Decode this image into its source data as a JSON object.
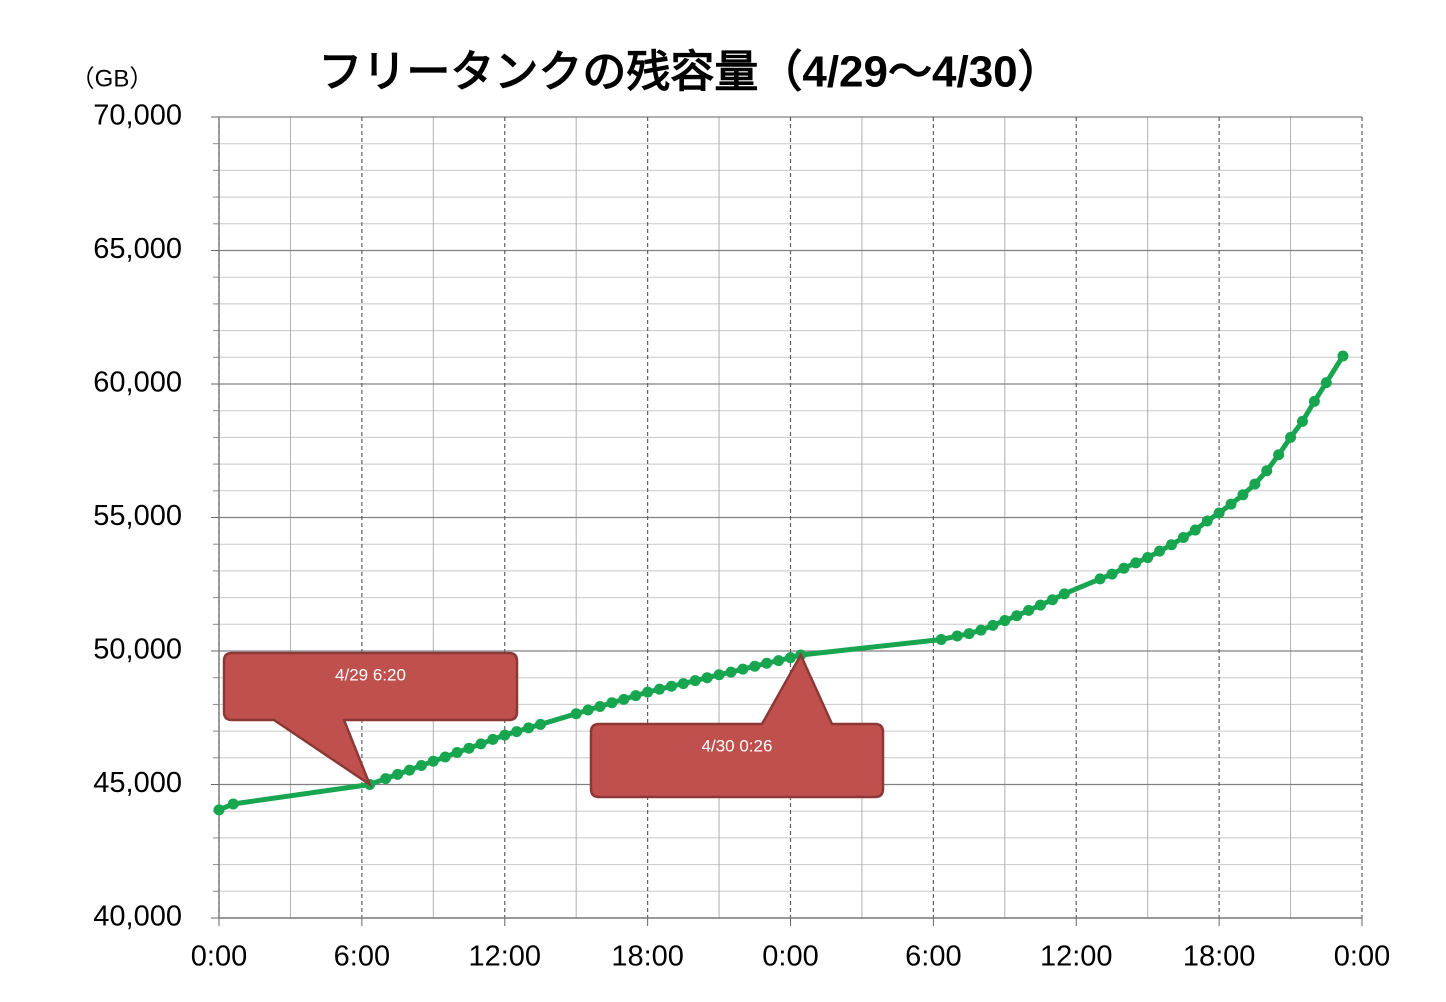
{
  "chart_data": {
    "type": "line",
    "title": "フリータンクの残容量（4/29～4/30）",
    "y_unit": "（GB）",
    "x": [
      0,
      0.6,
      6.33,
      7,
      7.5,
      8,
      8.5,
      9,
      9.5,
      10,
      10.5,
      11,
      11.5,
      12,
      12.5,
      13,
      13.5,
      15,
      15.5,
      16,
      16.5,
      17,
      17.5,
      18,
      18.5,
      19,
      19.5,
      20,
      20.5,
      21,
      21.5,
      22,
      22.5,
      23,
      23.5,
      24,
      24.43,
      30.33,
      31,
      31.5,
      32,
      32.5,
      33,
      33.5,
      34,
      34.5,
      35,
      35.5,
      37,
      37.5,
      38,
      38.5,
      39,
      39.5,
      40,
      40.5,
      41,
      41.5,
      42,
      42.5,
      43,
      43.5,
      44,
      44.5,
      45,
      45.5,
      46,
      46.5,
      47.2
    ],
    "series": [
      {
        "color": "#17a64f",
        "values": [
          44050,
          44270,
          45000,
          45220,
          45380,
          45540,
          45710,
          45870,
          46030,
          46200,
          46360,
          46520,
          46690,
          46850,
          46980,
          47120,
          47250,
          47650,
          47790,
          47920,
          48060,
          48190,
          48330,
          48460,
          48570,
          48680,
          48780,
          48890,
          49000,
          49110,
          49210,
          49320,
          49430,
          49540,
          49640,
          49750,
          49850,
          50430,
          50560,
          50650,
          50780,
          50960,
          51140,
          51320,
          51520,
          51720,
          51920,
          52140,
          52700,
          52880,
          53100,
          53300,
          53500,
          53740,
          53980,
          54250,
          54530,
          54870,
          55170,
          55500,
          55850,
          56250,
          56750,
          57350,
          58000,
          58600,
          59350,
          60050,
          61050
        ]
      }
    ],
    "xlim": [
      0,
      48
    ],
    "xticks": [
      {
        "value": 0,
        "label": "0:00"
      },
      {
        "value": 6,
        "label": "6:00"
      },
      {
        "value": 12,
        "label": "12:00"
      },
      {
        "value": 18,
        "label": "18:00"
      },
      {
        "value": 24,
        "label": "0:00"
      },
      {
        "value": 30,
        "label": "6:00"
      },
      {
        "value": 36,
        "label": "12:00"
      },
      {
        "value": 42,
        "label": "18:00"
      },
      {
        "value": 48,
        "label": "0:00"
      }
    ],
    "ylim": [
      40000,
      70000
    ],
    "yticks": [
      {
        "value": 40000,
        "label": "40,000"
      },
      {
        "value": 45000,
        "label": "45,000"
      },
      {
        "value": 50000,
        "label": "50,000"
      },
      {
        "value": 55000,
        "label": "55,000"
      },
      {
        "value": 60000,
        "label": "60,000"
      },
      {
        "value": 65000,
        "label": "65,000"
      },
      {
        "value": 70000,
        "label": "70,000"
      }
    ],
    "grid": true,
    "annotations": [
      {
        "text": "4/29 6:20",
        "x": 6.33,
        "y": 45000
      },
      {
        "text": "4/30 0:26",
        "x": 24.43,
        "y": 49850
      }
    ]
  }
}
